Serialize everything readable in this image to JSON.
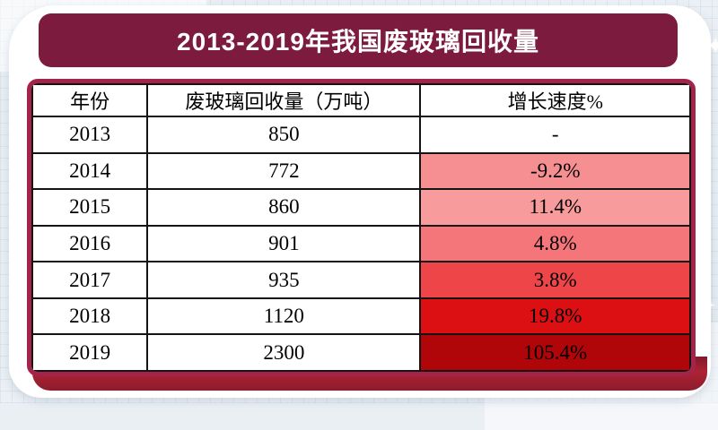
{
  "page": {
    "title": "2013-2019年我国废玻璃回收量"
  },
  "table": {
    "columns": [
      "年份",
      "废玻璃回收量（万吨）",
      "增长速度%"
    ],
    "rows": [
      {
        "year": "2013",
        "volume": "850",
        "growth": "-",
        "growth_bg": "#FFFFFF"
      },
      {
        "year": "2014",
        "volume": "772",
        "growth": "-9.2%",
        "growth_bg": "#F68F92"
      },
      {
        "year": "2015",
        "volume": "860",
        "growth": "11.4%",
        "growth_bg": "#F79B9D"
      },
      {
        "year": "2016",
        "volume": "901",
        "growth": "4.8%",
        "growth_bg": "#F4757A"
      },
      {
        "year": "2017",
        "volume": "935",
        "growth": "3.8%",
        "growth_bg": "#EE4549"
      },
      {
        "year": "2018",
        "volume": "1120",
        "growth": "19.8%",
        "growth_bg": "#DC1013"
      },
      {
        "year": "2019",
        "volume": "2300",
        "growth": "105.4%",
        "growth_bg": "#B00509"
      }
    ]
  },
  "icons": {
    "sparkle_top_right": "✦",
    "sparkle_mid_right": "✦"
  },
  "colors": {
    "banner_bg": "#7D1B3E",
    "banner_text": "#FFFFFF",
    "table_border": "#A42348",
    "grid_line": "#141414",
    "card_bg": "#FFFFFF",
    "page_bg": "#EAEFF4",
    "bottom_accent": "#AD2335"
  },
  "chart_data": {
    "type": "table",
    "title": "2013-2019年我国废玻璃回收量",
    "columns": [
      "年份",
      "废玻璃回收量（万吨）",
      "增长速度%"
    ],
    "x": [
      2013,
      2014,
      2015,
      2016,
      2017,
      2018,
      2019
    ],
    "series": [
      {
        "name": "废玻璃回收量（万吨）",
        "values": [
          850,
          772,
          860,
          901,
          935,
          1120,
          2300
        ]
      },
      {
        "name": "增长速度%",
        "values": [
          null,
          -9.2,
          11.4,
          4.8,
          3.8,
          19.8,
          105.4
        ]
      }
    ],
    "notes": "2013 growth rate shown as '-'; growth-rate cells shaded from light pink to dark red"
  }
}
